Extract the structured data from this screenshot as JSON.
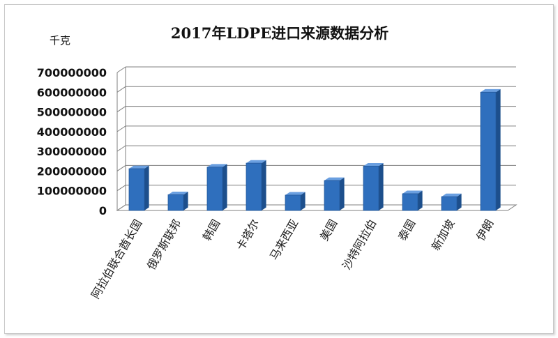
{
  "chart_data": {
    "type": "bar",
    "title": "2017年LDPE进口来源数据分析",
    "unit": "千克",
    "categories": [
      "阿拉伯联合酋长国",
      "俄罗斯联邦",
      "韩国",
      "卡塔尔",
      "马来西亚",
      "美国",
      "沙特阿拉伯",
      "泰国",
      "新加坡",
      "伊朗"
    ],
    "values": [
      212000000,
      80000000,
      220000000,
      240000000,
      78000000,
      152000000,
      225000000,
      85000000,
      70000000,
      600000000
    ],
    "yticks": [
      "0",
      "100000000",
      "200000000",
      "300000000",
      "400000000",
      "500000000",
      "600000000",
      "700000000"
    ],
    "ylim": [
      0,
      700000000
    ],
    "grid": true,
    "legend": "none",
    "colors": {
      "bar_front": "#2f6fbd",
      "bar_side": "#1d4f8c",
      "bar_top": "#6a9fe0",
      "grid": "#7f7f7f"
    }
  }
}
